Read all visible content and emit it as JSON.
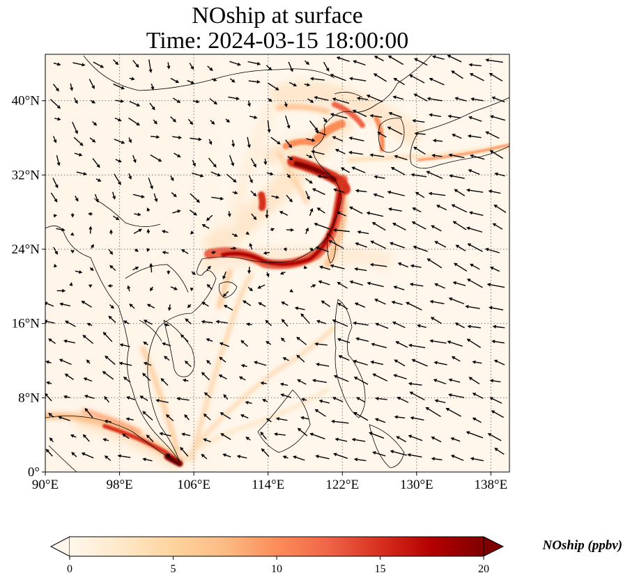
{
  "title": {
    "line1": "NOship at surface",
    "line2": "Time: 2024-03-15 18:00:00"
  },
  "map": {
    "projection": "PlateCarree",
    "extent": {
      "lon_min": 90,
      "lon_max": 140,
      "lat_min": 0,
      "lat_max": 45
    },
    "gridlines": "dotted",
    "lon_ticks": [
      {
        "value": 90,
        "label": "90°E"
      },
      {
        "value": 98,
        "label": "98°E"
      },
      {
        "value": 106,
        "label": "106°E"
      },
      {
        "value": 114,
        "label": "114°E"
      },
      {
        "value": 122,
        "label": "122°E"
      },
      {
        "value": 130,
        "label": "130°E"
      },
      {
        "value": 138,
        "label": "138°E"
      }
    ],
    "lat_ticks": [
      {
        "value": 0,
        "label": "0°"
      },
      {
        "value": 8,
        "label": "8°N"
      },
      {
        "value": 16,
        "label": "16°N"
      },
      {
        "value": 24,
        "label": "24°N"
      },
      {
        "value": 32,
        "label": "32°N"
      },
      {
        "value": 40,
        "label": "40°N"
      }
    ]
  },
  "colorbar": {
    "label": "NOship (ppbv)",
    "min": 0,
    "max": 20,
    "extend": "both",
    "colormap": "OrRd",
    "colors": [
      "#fff7ec",
      "#fee8c8",
      "#fdd49e",
      "#fdbb84",
      "#fc8d59",
      "#ef6548",
      "#d7301f",
      "#b30000",
      "#7f0000"
    ],
    "ticks": [
      {
        "value": 0,
        "label": "0"
      },
      {
        "value": 5,
        "label": "5"
      },
      {
        "value": 10,
        "label": "10"
      },
      {
        "value": 15,
        "label": "15"
      },
      {
        "value": 20,
        "label": "20"
      }
    ]
  }
}
